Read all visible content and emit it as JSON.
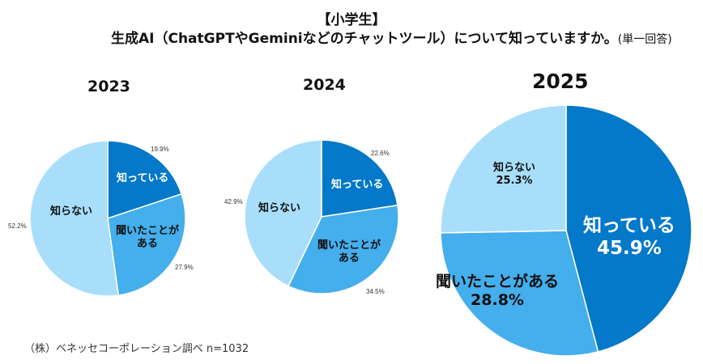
{
  "chart_data": [
    {
      "type": "pie",
      "title": "2023",
      "categories": [
        "知っている",
        "聞いたことがある",
        "知らない"
      ],
      "values": [
        19.9,
        27.9,
        52.2
      ],
      "value_labels": [
        "19.9%",
        "27.9%",
        "52.2%"
      ],
      "colors": [
        "#0478c9",
        "#45aeec",
        "#a9defb"
      ]
    },
    {
      "type": "pie",
      "title": "2024",
      "categories": [
        "知っている",
        "聞いたことがある",
        "知らない"
      ],
      "values": [
        22.6,
        34.5,
        42.9
      ],
      "value_labels": [
        "22.6%",
        "34.5%",
        "42.9%"
      ],
      "colors": [
        "#0478c9",
        "#45aeec",
        "#a9defb"
      ]
    },
    {
      "type": "pie",
      "title": "2025",
      "categories": [
        "知っている",
        "聞いたことがある",
        "知らない"
      ],
      "values": [
        45.9,
        28.8,
        25.3
      ],
      "value_labels": [
        "45.9%",
        "28.8%",
        "25.3%"
      ],
      "colors": [
        "#0478c9",
        "#45aeec",
        "#a9defb"
      ]
    }
  ],
  "header": {
    "group": "【小学生】",
    "question": "生成AI（ChatGPTやGeminiなどのチャットツール）について知っていますか。",
    "note": "(単一回答)"
  },
  "labels": {
    "second_line": "ある",
    "first_line": "聞いたことが"
  },
  "source": "（株）ベネッセコーポレーション調べ n=1032"
}
